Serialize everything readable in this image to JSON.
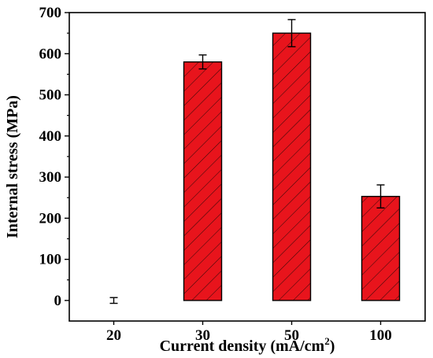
{
  "chart_data": {
    "type": "bar",
    "categories": [
      "20",
      "30",
      "50",
      "100"
    ],
    "values": [
      0,
      580,
      650,
      253
    ],
    "errors": [
      7,
      17,
      33,
      28
    ],
    "xlabel": "Current density (mA/cm",
    "xlabel_sup": "2",
    "xlabel_end": ")",
    "ylabel": "Internal stress (MPa)",
    "ylim": [
      -50,
      700
    ],
    "yticks": [
      0,
      100,
      200,
      300,
      400,
      500,
      600,
      700
    ],
    "grid": false,
    "legend": "none",
    "bar_fill": "hatched-diagonal",
    "colors": {
      "bar": "#e8141c",
      "hatch": "#3a0a0a",
      "axis": "#000000"
    }
  }
}
